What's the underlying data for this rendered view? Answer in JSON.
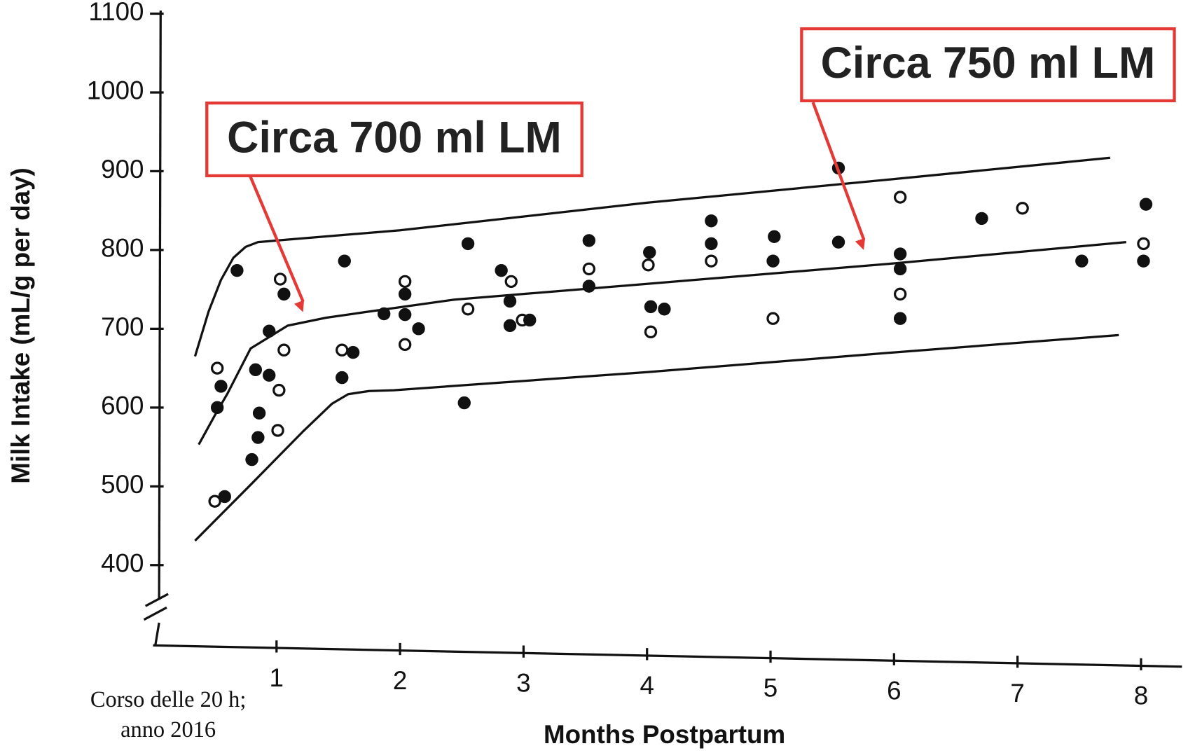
{
  "chart_data": {
    "type": "scatter",
    "y_label": "Milk Intake (mL/g per day)",
    "x_label": "Months Postpartum",
    "xlim": [
      0,
      8.3
    ],
    "xticks": [
      1,
      2,
      3,
      4,
      5,
      6,
      7,
      8
    ],
    "ylim": [
      400,
      1100
    ],
    "yticks": [
      400,
      500,
      600,
      700,
      800,
      900,
      1000,
      1100
    ],
    "series": [
      {
        "color": "#111111",
        "x": [
          0.68,
          0.52,
          0.55,
          0.52,
          1.03,
          1.06,
          0.94,
          1.06,
          0.83,
          0.94,
          1.02,
          0.86,
          0.85,
          1.01,
          0.8,
          0.58,
          0.5,
          1.55,
          1.53,
          1.53,
          1.62,
          1.87,
          2.04,
          2.04,
          2.04,
          2.04,
          2.15,
          2.55,
          2.55,
          2.52,
          2.82,
          2.9,
          2.89,
          2.89,
          2.99,
          3.05,
          3.53,
          3.53,
          3.53,
          4.02,
          4.01,
          4.03,
          4.14,
          4.03,
          4.52,
          4.52,
          4.52,
          5.03,
          5.02,
          5.02,
          5.55,
          5.55,
          6.05,
          6.05,
          6.05,
          6.05,
          6.05,
          6.71,
          7.04,
          7.52,
          8.04,
          8.02,
          8.02
        ],
        "values": [
          774,
          650,
          627,
          600,
          763,
          744,
          697,
          673,
          648,
          641,
          622,
          593,
          562,
          571,
          534,
          487,
          481,
          786,
          638,
          673,
          670,
          719,
          760,
          744,
          718,
          680,
          700,
          808,
          725,
          606,
          774,
          760,
          735,
          704,
          711,
          711,
          812,
          776,
          754,
          797,
          781,
          728,
          725,
          696,
          837,
          808,
          786,
          817,
          786,
          713,
          904,
          810,
          867,
          795,
          776,
          744,
          713,
          840,
          853,
          786,
          858,
          808,
          786
        ]
      }
    ],
    "curves": [
      {
        "type": "line",
        "color": "#111111",
        "x": [
          0.34,
          0.45,
          0.55,
          0.65,
          0.75,
          0.85,
          1.0,
          2.0,
          4.0,
          6.0,
          7.75
        ],
        "values": [
          665,
          722,
          762,
          790,
          804,
          810,
          812,
          825,
          860,
          890,
          917
        ]
      },
      {
        "type": "line",
        "color": "#111111",
        "x": [
          0.37,
          0.5,
          0.6,
          0.79,
          1.09,
          1.4,
          1.71,
          2.44,
          4.0,
          6.0,
          7.88
        ],
        "values": [
          553,
          590,
          617,
          675,
          704,
          714,
          721,
          737,
          757,
          783,
          810
        ]
      },
      {
        "type": "line",
        "color": "#111111",
        "x": [
          0.34,
          0.79,
          1.21,
          1.45,
          1.58,
          1.75,
          1.95,
          4.0,
          6.0,
          7.82
        ],
        "values": [
          431,
          502,
          569,
          605,
          617,
          621,
          622,
          645,
          670,
          692
        ]
      }
    ],
    "annotations": [
      "Circa 700 ml LM",
      "Circa 750 ml LM"
    ],
    "annotation_color": "#e53935",
    "footer": [
      "Corso delle 20 h;",
      "anno 2016"
    ]
  }
}
